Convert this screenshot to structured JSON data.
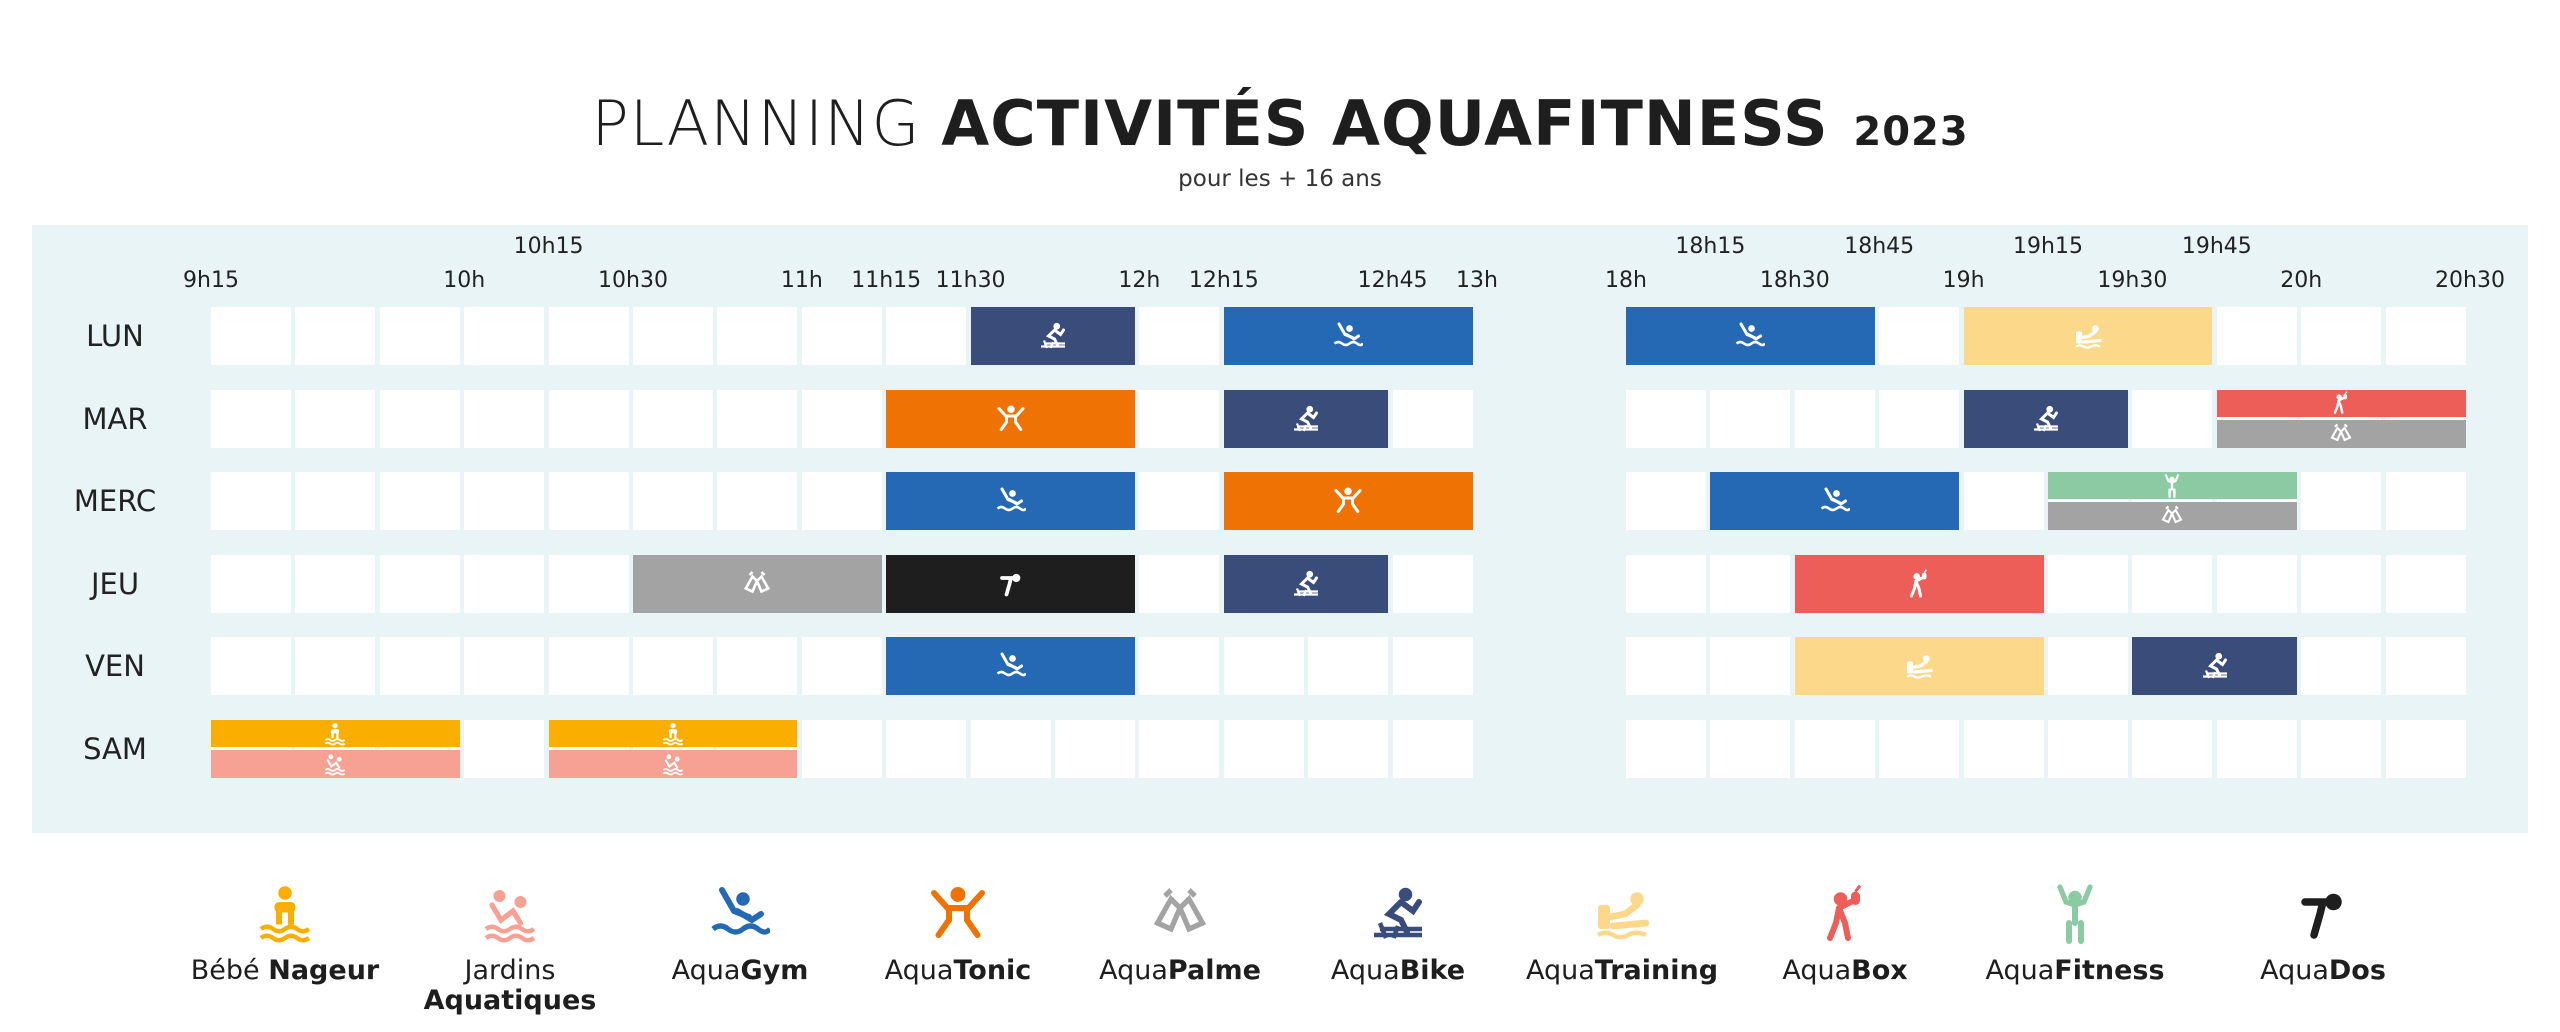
{
  "header": {
    "title_light": "PLANNING",
    "title_bold": "ACTIVITÉS AQUAFITNESS",
    "title_year": "2023",
    "subtitle": "pour les + 16 ans"
  },
  "colors": {
    "panel_bg": "#e8f4f5",
    "slot_empty": "#ffffff",
    "bebe_nageur": "#f9ae00",
    "jardins_aquatiques": "#f6a193",
    "aquagym": "#2568b3",
    "aquatonic": "#ee7204",
    "aquapalme": "#a3a3a3",
    "aquabike": "#3a4c7a",
    "aquatraining": "#fcd88b",
    "aquabox": "#ec5e57",
    "aquafitness": "#8ccaa3",
    "aquados": "#1e1e1e"
  },
  "times": [
    {
      "label": "9h15",
      "row": "bottom"
    },
    {
      "label": "10h15",
      "row": "top"
    },
    {
      "label": "10h",
      "row": "bottom"
    },
    {
      "label": "10h30",
      "row": "bottom"
    },
    {
      "label": "11h",
      "row": "bottom"
    },
    {
      "label": "11h15",
      "row": "bottom"
    },
    {
      "label": "11h30",
      "row": "bottom"
    },
    {
      "label": "12h",
      "row": "bottom"
    },
    {
      "label": "12h15",
      "row": "bottom"
    },
    {
      "label": "12h45",
      "row": "bottom"
    },
    {
      "label": "13h",
      "row": "bottom"
    },
    {
      "label": "18h",
      "row": "bottom"
    },
    {
      "label": "18h15",
      "row": "top"
    },
    {
      "label": "18h30",
      "row": "bottom"
    },
    {
      "label": "18h45",
      "row": "top"
    },
    {
      "label": "19h",
      "row": "bottom"
    },
    {
      "label": "19h15",
      "row": "top"
    },
    {
      "label": "19h30",
      "row": "bottom"
    },
    {
      "label": "19h45",
      "row": "top"
    },
    {
      "label": "20h",
      "row": "bottom"
    },
    {
      "label": "20h30",
      "row": "bottom"
    }
  ],
  "days": [
    "LUN",
    "MAR",
    "MERC",
    "JEU",
    "VEN",
    "SAM"
  ],
  "schedule": [
    {
      "day": "LUN",
      "start": "11h30",
      "end": "12h",
      "activity": "aquabike"
    },
    {
      "day": "LUN",
      "start": "12h15",
      "end": "13h",
      "activity": "aquagym"
    },
    {
      "day": "LUN",
      "start": "18h",
      "end": "18h45",
      "activity": "aquagym"
    },
    {
      "day": "LUN",
      "start": "19h",
      "end": "19h45",
      "activity": "aquatraining"
    },
    {
      "day": "MAR",
      "start": "11h15",
      "end": "12h",
      "activity": "aquatonic"
    },
    {
      "day": "MAR",
      "start": "12h15",
      "end": "12h45",
      "activity": "aquabike"
    },
    {
      "day": "MAR",
      "start": "19h",
      "end": "19h30",
      "activity": "aquabike"
    },
    {
      "day": "MAR",
      "start": "19h45",
      "end": "20h30",
      "activity": "aquabox",
      "part": "top"
    },
    {
      "day": "MAR",
      "start": "19h45",
      "end": "20h30",
      "activity": "aquapalme",
      "part": "bottom"
    },
    {
      "day": "MERC",
      "start": "11h15",
      "end": "12h",
      "activity": "aquagym"
    },
    {
      "day": "MERC",
      "start": "12h15",
      "end": "13h",
      "activity": "aquatonic"
    },
    {
      "day": "MERC",
      "start": "18h15",
      "end": "19h",
      "activity": "aquagym"
    },
    {
      "day": "MERC",
      "start": "19h15",
      "end": "20h",
      "activity": "aquafitness",
      "part": "top"
    },
    {
      "day": "MERC",
      "start": "19h15",
      "end": "20h",
      "activity": "aquapalme",
      "part": "bottom"
    },
    {
      "day": "JEU",
      "start": "10h30",
      "end": "11h15",
      "activity": "aquapalme"
    },
    {
      "day": "JEU",
      "start": "11h15",
      "end": "12h",
      "activity": "aquados"
    },
    {
      "day": "JEU",
      "start": "12h15",
      "end": "12h45",
      "activity": "aquabike"
    },
    {
      "day": "JEU",
      "start": "18h30",
      "end": "19h15",
      "activity": "aquabox"
    },
    {
      "day": "VEN",
      "start": "11h15",
      "end": "12h",
      "activity": "aquagym"
    },
    {
      "day": "VEN",
      "start": "18h30",
      "end": "19h15",
      "activity": "aquatraining"
    },
    {
      "day": "VEN",
      "start": "19h30",
      "end": "20h",
      "activity": "aquabike"
    },
    {
      "day": "SAM",
      "start": "9h15",
      "end": "10h",
      "activity": "bebe_nageur",
      "part": "top"
    },
    {
      "day": "SAM",
      "start": "9h15",
      "end": "10h",
      "activity": "jardins_aquatiques",
      "part": "bottom"
    },
    {
      "day": "SAM",
      "start": "10h15",
      "end": "11h",
      "activity": "bebe_nageur",
      "part": "top"
    },
    {
      "day": "SAM",
      "start": "10h15",
      "end": "11h",
      "activity": "jardins_aquatiques",
      "part": "bottom"
    }
  ],
  "legend": [
    {
      "key": "bebe_nageur",
      "light": "Bébé ",
      "bold": "Nageur",
      "icon": "baby-swimmer-icon"
    },
    {
      "key": "jardins_aquatiques",
      "light": "Jardins",
      "bold": "Aquatiques",
      "icon": "water-garden-icon",
      "two_lines": true
    },
    {
      "key": "aquagym",
      "light": "Aqua",
      "bold": "Gym",
      "icon": "aquagym-swimmer-icon"
    },
    {
      "key": "aquatonic",
      "light": "Aqua",
      "bold": "Tonic",
      "icon": "aquatonic-jumper-icon"
    },
    {
      "key": "aquapalme",
      "light": "Aqua",
      "bold": "Palme",
      "icon": "flippers-icon"
    },
    {
      "key": "aquabike",
      "light": "Aqua",
      "bold": "Bike",
      "icon": "aquabike-icon"
    },
    {
      "key": "aquatraining",
      "light": "Aqua",
      "bold": "Training",
      "icon": "aquatraining-icon"
    },
    {
      "key": "aquabox",
      "light": "Aqua",
      "bold": "Box",
      "icon": "boxing-icon"
    },
    {
      "key": "aquafitness",
      "light": "Aqua",
      "bold": "Fitness",
      "icon": "aquafitness-icon"
    },
    {
      "key": "aquados",
      "light": "Aqua",
      "bold": "Dos",
      "icon": "back-stretch-icon"
    }
  ]
}
